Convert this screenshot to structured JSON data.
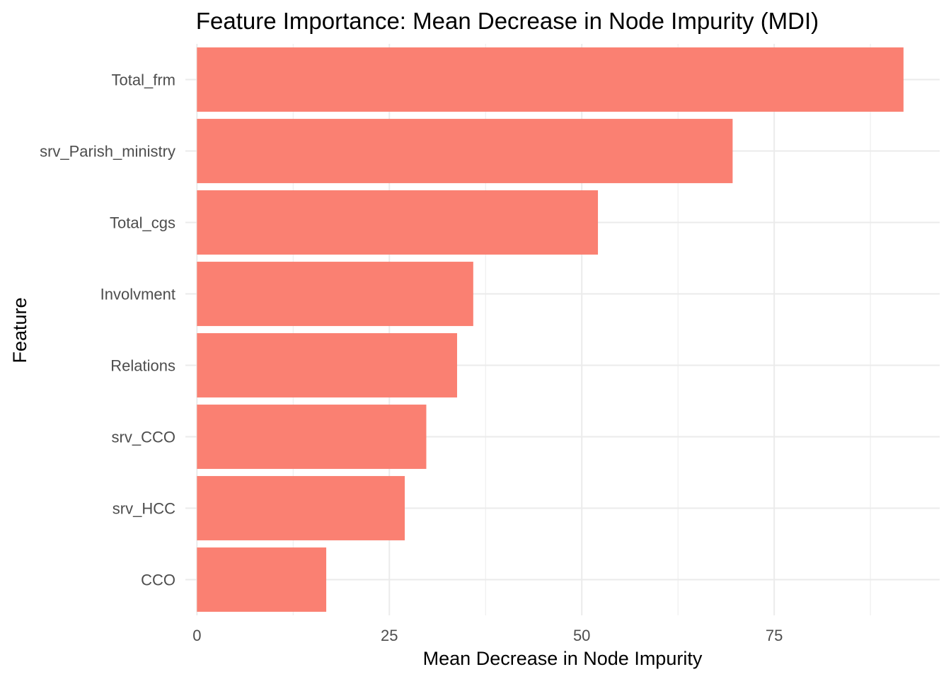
{
  "chart_data": {
    "type": "bar",
    "orientation": "horizontal",
    "title": "Feature Importance: Mean Decrease in Node Impurity (MDI)",
    "xlabel": "Mean Decrease in Node Impurity",
    "ylabel": "Feature",
    "categories": [
      "Total_frm",
      "srv_Parish_ministry",
      "Total_cgs",
      "Involvment",
      "Relations",
      "srv_CCO",
      "srv_HCC",
      "CCO"
    ],
    "values": [
      91.8,
      69.6,
      52.1,
      35.9,
      33.8,
      29.8,
      27.0,
      16.8
    ],
    "xlim": [
      -1.5,
      96.5
    ],
    "xticks": [
      0,
      25,
      50,
      75
    ],
    "xtick_labels": [
      "0",
      "25",
      "50",
      "75"
    ],
    "grid": true,
    "bar_color": "#fa8072",
    "grid_color": "#ebebeb"
  }
}
